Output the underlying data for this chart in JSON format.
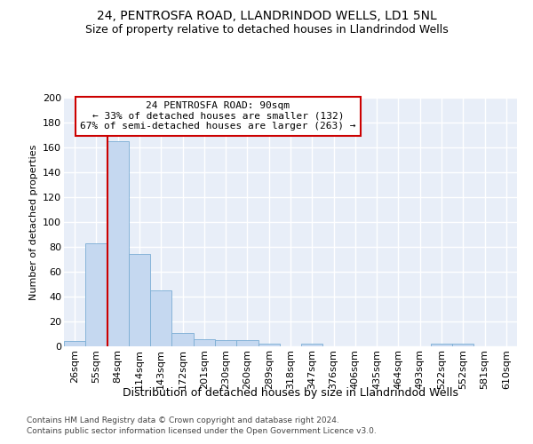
{
  "title1": "24, PENTROSFA ROAD, LLANDRINDOD WELLS, LD1 5NL",
  "title2": "Size of property relative to detached houses in Llandrindod Wells",
  "xlabel": "Distribution of detached houses by size in Llandrindod Wells",
  "ylabel": "Number of detached properties",
  "footer1": "Contains HM Land Registry data © Crown copyright and database right 2024.",
  "footer2": "Contains public sector information licensed under the Open Government Licence v3.0.",
  "categories": [
    "26sqm",
    "55sqm",
    "84sqm",
    "114sqm",
    "143sqm",
    "172sqm",
    "201sqm",
    "230sqm",
    "260sqm",
    "289sqm",
    "318sqm",
    "347sqm",
    "376sqm",
    "406sqm",
    "435sqm",
    "464sqm",
    "493sqm",
    "522sqm",
    "552sqm",
    "581sqm",
    "610sqm"
  ],
  "values": [
    4,
    83,
    165,
    74,
    45,
    11,
    6,
    5,
    5,
    2,
    0,
    2,
    0,
    0,
    0,
    0,
    0,
    2,
    2,
    0,
    0
  ],
  "bar_color": "#c5d8f0",
  "bar_edge_color": "#7aadd4",
  "red_line_color": "#cc0000",
  "red_line_x": 1.5,
  "annotation_title": "24 PENTROSFA ROAD: 90sqm",
  "annotation_line1": "← 33% of detached houses are smaller (132)",
  "annotation_line2": "67% of semi-detached houses are larger (263) →",
  "ylim": [
    0,
    200
  ],
  "yticks": [
    0,
    20,
    40,
    60,
    80,
    100,
    120,
    140,
    160,
    180,
    200
  ],
  "bg_color": "#e8eef8",
  "grid_color": "#ffffff",
  "title1_fontsize": 10,
  "title2_fontsize": 9,
  "xlabel_fontsize": 9,
  "ylabel_fontsize": 8,
  "tick_fontsize": 8,
  "ann_fontsize": 8
}
